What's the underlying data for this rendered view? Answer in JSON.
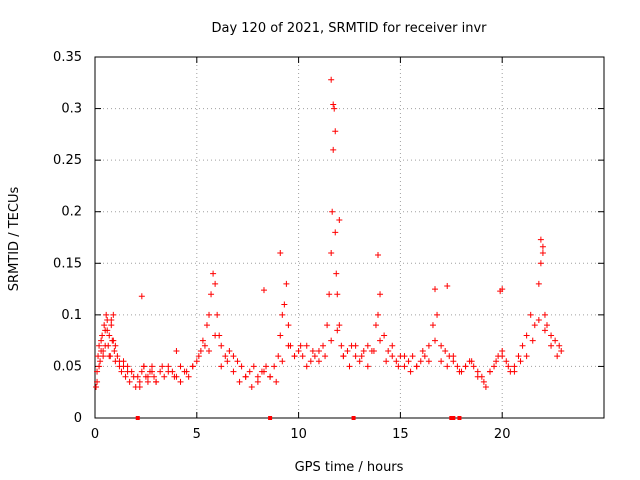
{
  "chart_data": {
    "type": "scatter",
    "title": "Day 120 of 2021, SRMTID for receiver invr",
    "xlabel": "GPS time / hours",
    "ylabel": "SRMTID / TECUs",
    "xlim": [
      0,
      25
    ],
    "ylim": [
      0,
      0.35
    ],
    "xticks": [
      0,
      5,
      10,
      15,
      20
    ],
    "yticks": [
      0,
      0.05,
      0.1,
      0.15,
      0.2,
      0.25,
      0.3,
      0.35
    ],
    "xtick_labels": [
      "0",
      "5",
      "10",
      "15",
      "20"
    ],
    "ytick_labels": [
      "0",
      "0.05",
      "0.1",
      "0.15",
      "0.2",
      "0.25",
      "0.3",
      "0.35"
    ],
    "grid": true,
    "marker": "+",
    "series_color": "#ff0000",
    "series": [
      {
        "x": [
          0.05,
          0.1,
          0.15,
          0.2,
          0.25,
          0.3,
          0.35,
          0.4,
          0.45,
          0.5,
          0.55,
          0.6,
          0.65,
          0.7,
          0.75,
          0.8,
          0.85,
          0.9,
          0.95,
          1.0,
          1.1,
          1.2,
          1.3,
          1.4,
          1.5,
          1.6,
          1.7,
          1.8,
          1.9,
          2.0,
          2.1,
          2.2,
          2.3,
          2.4,
          2.5,
          2.6,
          2.7,
          2.8,
          2.9,
          3.0,
          3.2,
          3.4,
          3.6,
          3.8,
          4.0,
          4.2,
          4.4,
          4.6,
          4.8,
          5.0,
          5.2,
          5.4,
          5.5,
          5.6,
          5.7,
          5.8,
          5.9,
          6.0,
          6.1,
          6.2,
          6.4,
          6.6,
          6.8,
          7.0,
          7.2,
          7.4,
          7.6,
          7.8,
          8.0,
          8.2,
          8.4,
          8.6,
          8.8,
          9.0,
          9.1,
          9.2,
          9.3,
          9.4,
          9.5,
          9.6,
          9.8,
          10.0,
          10.2,
          10.4,
          10.6,
          10.8,
          11.0,
          11.2,
          11.4,
          11.5,
          11.6,
          11.65,
          11.7,
          11.75,
          11.8,
          11.85,
          11.9,
          12.0,
          12.1,
          12.2,
          12.4,
          12.6,
          12.8,
          13.0,
          13.2,
          13.4,
          13.6,
          13.8,
          13.9,
          14.0,
          14.2,
          14.4,
          14.6,
          14.8,
          15.0,
          15.2,
          15.4,
          15.6,
          15.8,
          16.0,
          16.2,
          16.4,
          16.6,
          16.8,
          17.0,
          17.2,
          17.4,
          17.6,
          17.8,
          18.0,
          18.2,
          18.4,
          18.6,
          18.8,
          19.0,
          19.2,
          19.4,
          19.6,
          19.8,
          20.0,
          20.2,
          20.4,
          20.6,
          20.8,
          21.0,
          21.2,
          21.4,
          21.6,
          21.8,
          21.9,
          22.0,
          22.1,
          22.2,
          22.4,
          22.6,
          22.8,
          22.9,
          0.1,
          0.2,
          0.3,
          0.4,
          0.5,
          0.6,
          0.7,
          0.8,
          0.9,
          1.0,
          1.2,
          1.4,
          1.6,
          2.2,
          2.4,
          2.6,
          2.8,
          3.0,
          3.3,
          3.6,
          3.9,
          4.2,
          4.5,
          4.8,
          5.1,
          5.3,
          5.6,
          5.9,
          6.2,
          6.5,
          6.8,
          7.1,
          7.4,
          7.7,
          8.0,
          8.3,
          8.6,
          8.9,
          9.2,
          9.5,
          9.8,
          10.1,
          10.4,
          10.7,
          11.0,
          11.3,
          11.6,
          11.9,
          12.2,
          12.5,
          12.8,
          13.1,
          13.4,
          13.7,
          14.0,
          14.3,
          14.6,
          14.9,
          15.2,
          15.5,
          15.8,
          16.1,
          16.4,
          16.7,
          17.0,
          17.3,
          17.6,
          17.9,
          18.2,
          18.5,
          18.8,
          19.1,
          19.4,
          19.7,
          20.0,
          20.3,
          20.6,
          20.9,
          21.2,
          21.5,
          21.8,
          22.1,
          22.4,
          22.7,
          2.3,
          4.0,
          8.3,
          9.1,
          11.6,
          11.7,
          11.8,
          12.0,
          13.9,
          16.7,
          17.3,
          19.9,
          20.0,
          21.9,
          22.0
        ],
        "y": [
          0.03,
          0.045,
          0.06,
          0.07,
          0.055,
          0.075,
          0.08,
          0.065,
          0.09,
          0.085,
          0.1,
          0.095,
          0.07,
          0.08,
          0.06,
          0.09,
          0.075,
          0.1,
          0.065,
          0.055,
          0.06,
          0.05,
          0.045,
          0.055,
          0.04,
          0.05,
          0.035,
          0.045,
          0.04,
          0.03,
          0.04,
          0.035,
          0.045,
          0.05,
          0.04,
          0.035,
          0.045,
          0.05,
          0.04,
          0.035,
          0.045,
          0.04,
          0.05,
          0.045,
          0.04,
          0.05,
          0.045,
          0.04,
          0.05,
          0.055,
          0.065,
          0.07,
          0.09,
          0.1,
          0.12,
          0.14,
          0.13,
          0.1,
          0.08,
          0.07,
          0.06,
          0.065,
          0.06,
          0.055,
          0.05,
          0.04,
          0.045,
          0.05,
          0.04,
          0.045,
          0.05,
          0.04,
          0.05,
          0.06,
          0.08,
          0.1,
          0.11,
          0.13,
          0.09,
          0.07,
          0.06,
          0.065,
          0.06,
          0.07,
          0.055,
          0.06,
          0.065,
          0.07,
          0.09,
          0.12,
          0.16,
          0.2,
          0.26,
          0.3,
          0.18,
          0.14,
          0.12,
          0.09,
          0.07,
          0.06,
          0.065,
          0.07,
          0.06,
          0.055,
          0.065,
          0.07,
          0.065,
          0.09,
          0.1,
          0.12,
          0.08,
          0.065,
          0.06,
          0.055,
          0.06,
          0.05,
          0.055,
          0.06,
          0.05,
          0.055,
          0.06,
          0.07,
          0.09,
          0.1,
          0.07,
          0.065,
          0.06,
          0.055,
          0.05,
          0.045,
          0.05,
          0.055,
          0.05,
          0.045,
          0.04,
          0.03,
          0.045,
          0.05,
          0.06,
          0.065,
          0.055,
          0.045,
          0.05,
          0.06,
          0.07,
          0.08,
          0.1,
          0.09,
          0.13,
          0.15,
          0.16,
          0.1,
          0.09,
          0.08,
          0.075,
          0.07,
          0.065,
          0.035,
          0.05,
          0.065,
          0.06,
          0.07,
          0.085,
          0.06,
          0.095,
          0.075,
          0.07,
          0.055,
          0.05,
          0.045,
          0.03,
          0.05,
          0.04,
          0.045,
          0.035,
          0.05,
          0.045,
          0.04,
          0.035,
          0.045,
          0.05,
          0.06,
          0.075,
          0.065,
          0.08,
          0.05,
          0.055,
          0.045,
          0.035,
          0.04,
          0.03,
          0.035,
          0.045,
          0.04,
          0.035,
          0.055,
          0.07,
          0.06,
          0.07,
          0.05,
          0.065,
          0.055,
          0.06,
          0.075,
          0.085,
          0.06,
          0.05,
          0.07,
          0.06,
          0.05,
          0.065,
          0.075,
          0.055,
          0.07,
          0.05,
          0.06,
          0.045,
          0.05,
          0.065,
          0.055,
          0.075,
          0.055,
          0.05,
          0.06,
          0.045,
          0.05,
          0.055,
          0.04,
          0.035,
          0.045,
          0.055,
          0.06,
          0.05,
          0.045,
          0.055,
          0.06,
          0.075,
          0.095,
          0.085,
          0.07,
          0.06,
          0.118,
          0.065,
          0.124,
          0.16,
          0.328,
          0.304,
          0.278,
          0.192,
          0.158,
          0.125,
          0.128,
          0.123,
          0.125,
          0.173,
          0.166
        ]
      }
    ],
    "baseline_marks_x": [
      2.1,
      8.6,
      12.7,
      17.5,
      17.6,
      17.9
    ]
  }
}
